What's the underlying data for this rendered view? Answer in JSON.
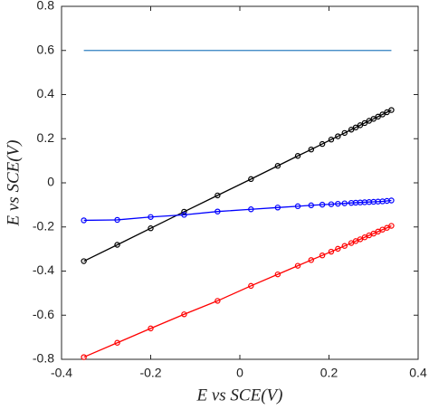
{
  "chart_data": {
    "type": "line",
    "xlabel": "E vs SCE(V)",
    "ylabel": "E vs SCE(V)",
    "xlim": [
      -0.4,
      0.4
    ],
    "xticks": [
      -0.4,
      -0.2,
      0,
      0.2,
      0.4
    ],
    "ylim": [
      -0.8,
      0.8
    ],
    "yticks": [
      -0.8,
      -0.6,
      -0.4,
      -0.2,
      0,
      0.2,
      0.4,
      0.6,
      0.8
    ],
    "series": [
      {
        "color": "#2f7fc1",
        "marker": false,
        "x": [
          -0.35,
          0.34
        ],
        "values": [
          0.6,
          0.6
        ]
      },
      {
        "color": "#000000",
        "marker": true,
        "x": [
          -0.35,
          -0.275,
          -0.2,
          -0.125,
          -0.05,
          0.025,
          0.085,
          0.13,
          0.16,
          0.185,
          0.205,
          0.22,
          0.235,
          0.25,
          0.26,
          0.27,
          0.28,
          0.29,
          0.3,
          0.31,
          0.32,
          0.33,
          0.34
        ],
        "values": [
          -0.355,
          -0.281,
          -0.206,
          -0.131,
          -0.057,
          0.017,
          0.077,
          0.122,
          0.151,
          0.176,
          0.196,
          0.211,
          0.226,
          0.241,
          0.251,
          0.261,
          0.271,
          0.281,
          0.29,
          0.3,
          0.31,
          0.32,
          0.33
        ]
      },
      {
        "color": "#0000ff",
        "marker": true,
        "x": [
          -0.35,
          -0.275,
          -0.2,
          -0.125,
          -0.05,
          0.025,
          0.085,
          0.13,
          0.16,
          0.185,
          0.205,
          0.22,
          0.235,
          0.25,
          0.26,
          0.27,
          0.28,
          0.29,
          0.3,
          0.31,
          0.32,
          0.33,
          0.34
        ],
        "values": [
          -0.17,
          -0.168,
          -0.155,
          -0.145,
          -0.13,
          -0.12,
          -0.112,
          -0.106,
          -0.102,
          -0.099,
          -0.097,
          -0.095,
          -0.093,
          -0.091,
          -0.09,
          -0.089,
          -0.088,
          -0.087,
          -0.086,
          -0.085,
          -0.084,
          -0.082,
          -0.08
        ]
      },
      {
        "color": "#ff0000",
        "marker": true,
        "x": [
          -0.35,
          -0.275,
          -0.2,
          -0.125,
          -0.05,
          0.025,
          0.085,
          0.13,
          0.16,
          0.185,
          0.205,
          0.22,
          0.235,
          0.25,
          0.26,
          0.27,
          0.28,
          0.29,
          0.3,
          0.31,
          0.32,
          0.33,
          0.34
        ],
        "values": [
          -0.79,
          -0.725,
          -0.66,
          -0.596,
          -0.535,
          -0.467,
          -0.415,
          -0.376,
          -0.35,
          -0.329,
          -0.312,
          -0.299,
          -0.286,
          -0.273,
          -0.264,
          -0.256,
          -0.247,
          -0.238,
          -0.23,
          -0.221,
          -0.212,
          -0.204,
          -0.195
        ]
      }
    ]
  }
}
